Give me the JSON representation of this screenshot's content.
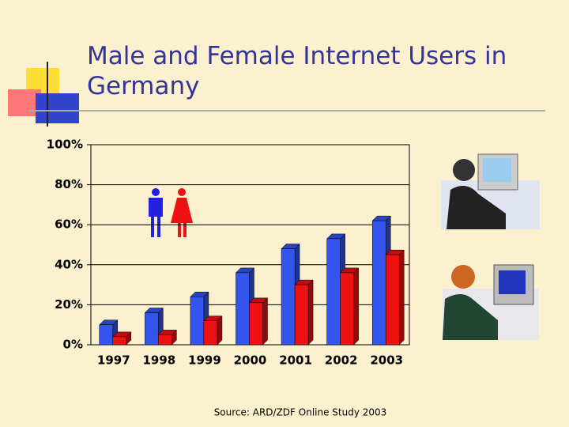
{
  "title": "Male and Female Internet Users in Germany",
  "source": "Source: ARD/ZDF Online Study 2003",
  "chart_data": {
    "type": "bar",
    "categories": [
      "1997",
      "1998",
      "1999",
      "2000",
      "2001",
      "2002",
      "2003"
    ],
    "series": [
      {
        "color": "#3355ee",
        "values": [
          10,
          16,
          24,
          36,
          48,
          53,
          62
        ]
      },
      {
        "color": "#ee1111",
        "values": [
          4,
          5,
          12,
          21,
          30,
          36,
          45
        ]
      }
    ],
    "ylim": [
      0,
      100
    ],
    "yticks": [
      {
        "value": 0,
        "label": "0%"
      },
      {
        "value": 20,
        "label": "20%"
      },
      {
        "value": 40,
        "label": "40%"
      },
      {
        "value": 60,
        "label": "60%"
      },
      {
        "value": 80,
        "label": "80%"
      },
      {
        "value": 100,
        "label": "100%"
      }
    ],
    "grid": true
  }
}
